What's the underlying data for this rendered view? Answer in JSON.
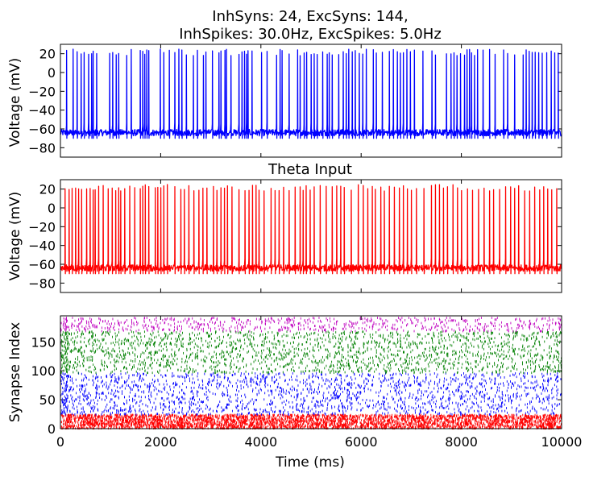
{
  "chart_data": [
    {
      "type": "line",
      "title_lines": [
        "InhSyns: 24, ExcSyns: 144,",
        "InhSpikes: 30.0Hz, ExcSpikes: 5.0Hz"
      ],
      "xlabel": "",
      "ylabel": "Voltage (mV)",
      "xlim": [
        0,
        10000
      ],
      "ylim": [
        -90,
        30
      ],
      "yticks": [
        "20",
        "0",
        "−20",
        "−40",
        "−60",
        "−80"
      ],
      "color": "#0000ff",
      "spike_times": [
        120,
        250,
        330,
        410,
        470,
        560,
        620,
        650,
        720,
        980,
        1040,
        1110,
        1160,
        1320,
        1410,
        1590,
        1640,
        1680,
        1720,
        1760,
        1990,
        2060,
        2170,
        2280,
        2360,
        2420,
        2510,
        2650,
        2730,
        2850,
        2900,
        3030,
        3160,
        3200,
        3280,
        3310,
        3400,
        3560,
        3620,
        3670,
        3710,
        3740,
        3820,
        4010,
        4120,
        4310,
        4380,
        4420,
        4560,
        4730,
        4780,
        4860,
        4910,
        5000,
        5060,
        5120,
        5230,
        5320,
        5360,
        5420,
        5550,
        5640,
        5700,
        5750,
        5820,
        5880,
        5960,
        6030,
        6100,
        6240,
        6300,
        6420,
        6560,
        6640,
        6720,
        6780,
        6840,
        6910,
        6980,
        7060,
        7230,
        7410,
        7480,
        7700,
        7790,
        7850,
        7910,
        7980,
        8060,
        8110,
        8160,
        8200,
        8260,
        8320,
        8430,
        8560,
        8670,
        8840,
        8920,
        9060,
        9230,
        9290,
        9350,
        9410,
        9470,
        9540,
        9610,
        9700,
        9790,
        9860,
        9930
      ]
    },
    {
      "type": "line",
      "title": "Theta Input",
      "xlabel": "",
      "ylabel": "Voltage (mV)",
      "xlim": [
        0,
        10000
      ],
      "ylim": [
        -90,
        30
      ],
      "yticks": [
        "20",
        "0",
        "−20",
        "−40",
        "−60",
        "−80"
      ],
      "color": "#ff0000",
      "spike_times": [
        90,
        170,
        230,
        300,
        360,
        420,
        520,
        590,
        650,
        690,
        760,
        850,
        950,
        1030,
        1100,
        1160,
        1200,
        1280,
        1380,
        1480,
        1590,
        1640,
        1690,
        1760,
        1890,
        1940,
        2000,
        2060,
        2130,
        2280,
        2400,
        2470,
        2560,
        2660,
        2760,
        2840,
        2920,
        3050,
        3120,
        3200,
        3270,
        3330,
        3420,
        3560,
        3680,
        3760,
        3830,
        3900,
        3960,
        4060,
        4200,
        4280,
        4360,
        4450,
        4560,
        4680,
        4780,
        4840,
        4900,
        4980,
        5060,
        5180,
        5300,
        5420,
        5510,
        5590,
        5660,
        5800,
        5940,
        6040,
        6130,
        6220,
        6280,
        6390,
        6460,
        6560,
        6660,
        6760,
        6840,
        6920,
        7000,
        7100,
        7250,
        7400,
        7480,
        7560,
        7640,
        7720,
        7830,
        7920,
        8000,
        8120,
        8220,
        8340,
        8450,
        8560,
        8640,
        8760,
        8880,
        8980,
        9060,
        9140,
        9260,
        9360,
        9460,
        9560,
        9640,
        9720,
        9800,
        9900
      ]
    },
    {
      "type": "scatter",
      "title": "",
      "xlabel": "Time (ms)",
      "ylabel": "Synapse Index",
      "xlim": [
        0,
        10000
      ],
      "ylim": [
        0,
        195
      ],
      "xticks": [
        0,
        2000,
        4000,
        6000,
        8000,
        10000
      ],
      "yticks": [
        0,
        50,
        100,
        150
      ],
      "series": [
        {
          "color": "#ff0000",
          "index_range": [
            0,
            24
          ],
          "rate_hz": 30.0
        },
        {
          "color": "#0000ff",
          "index_range": [
            24,
            96
          ],
          "rate_hz": 5.0
        },
        {
          "color": "#008000",
          "index_range": [
            96,
            168
          ],
          "rate_hz": 5.0
        },
        {
          "color": "#bf00bf",
          "index_range": [
            168,
            192
          ],
          "rate_hz": 5.0
        }
      ]
    }
  ]
}
